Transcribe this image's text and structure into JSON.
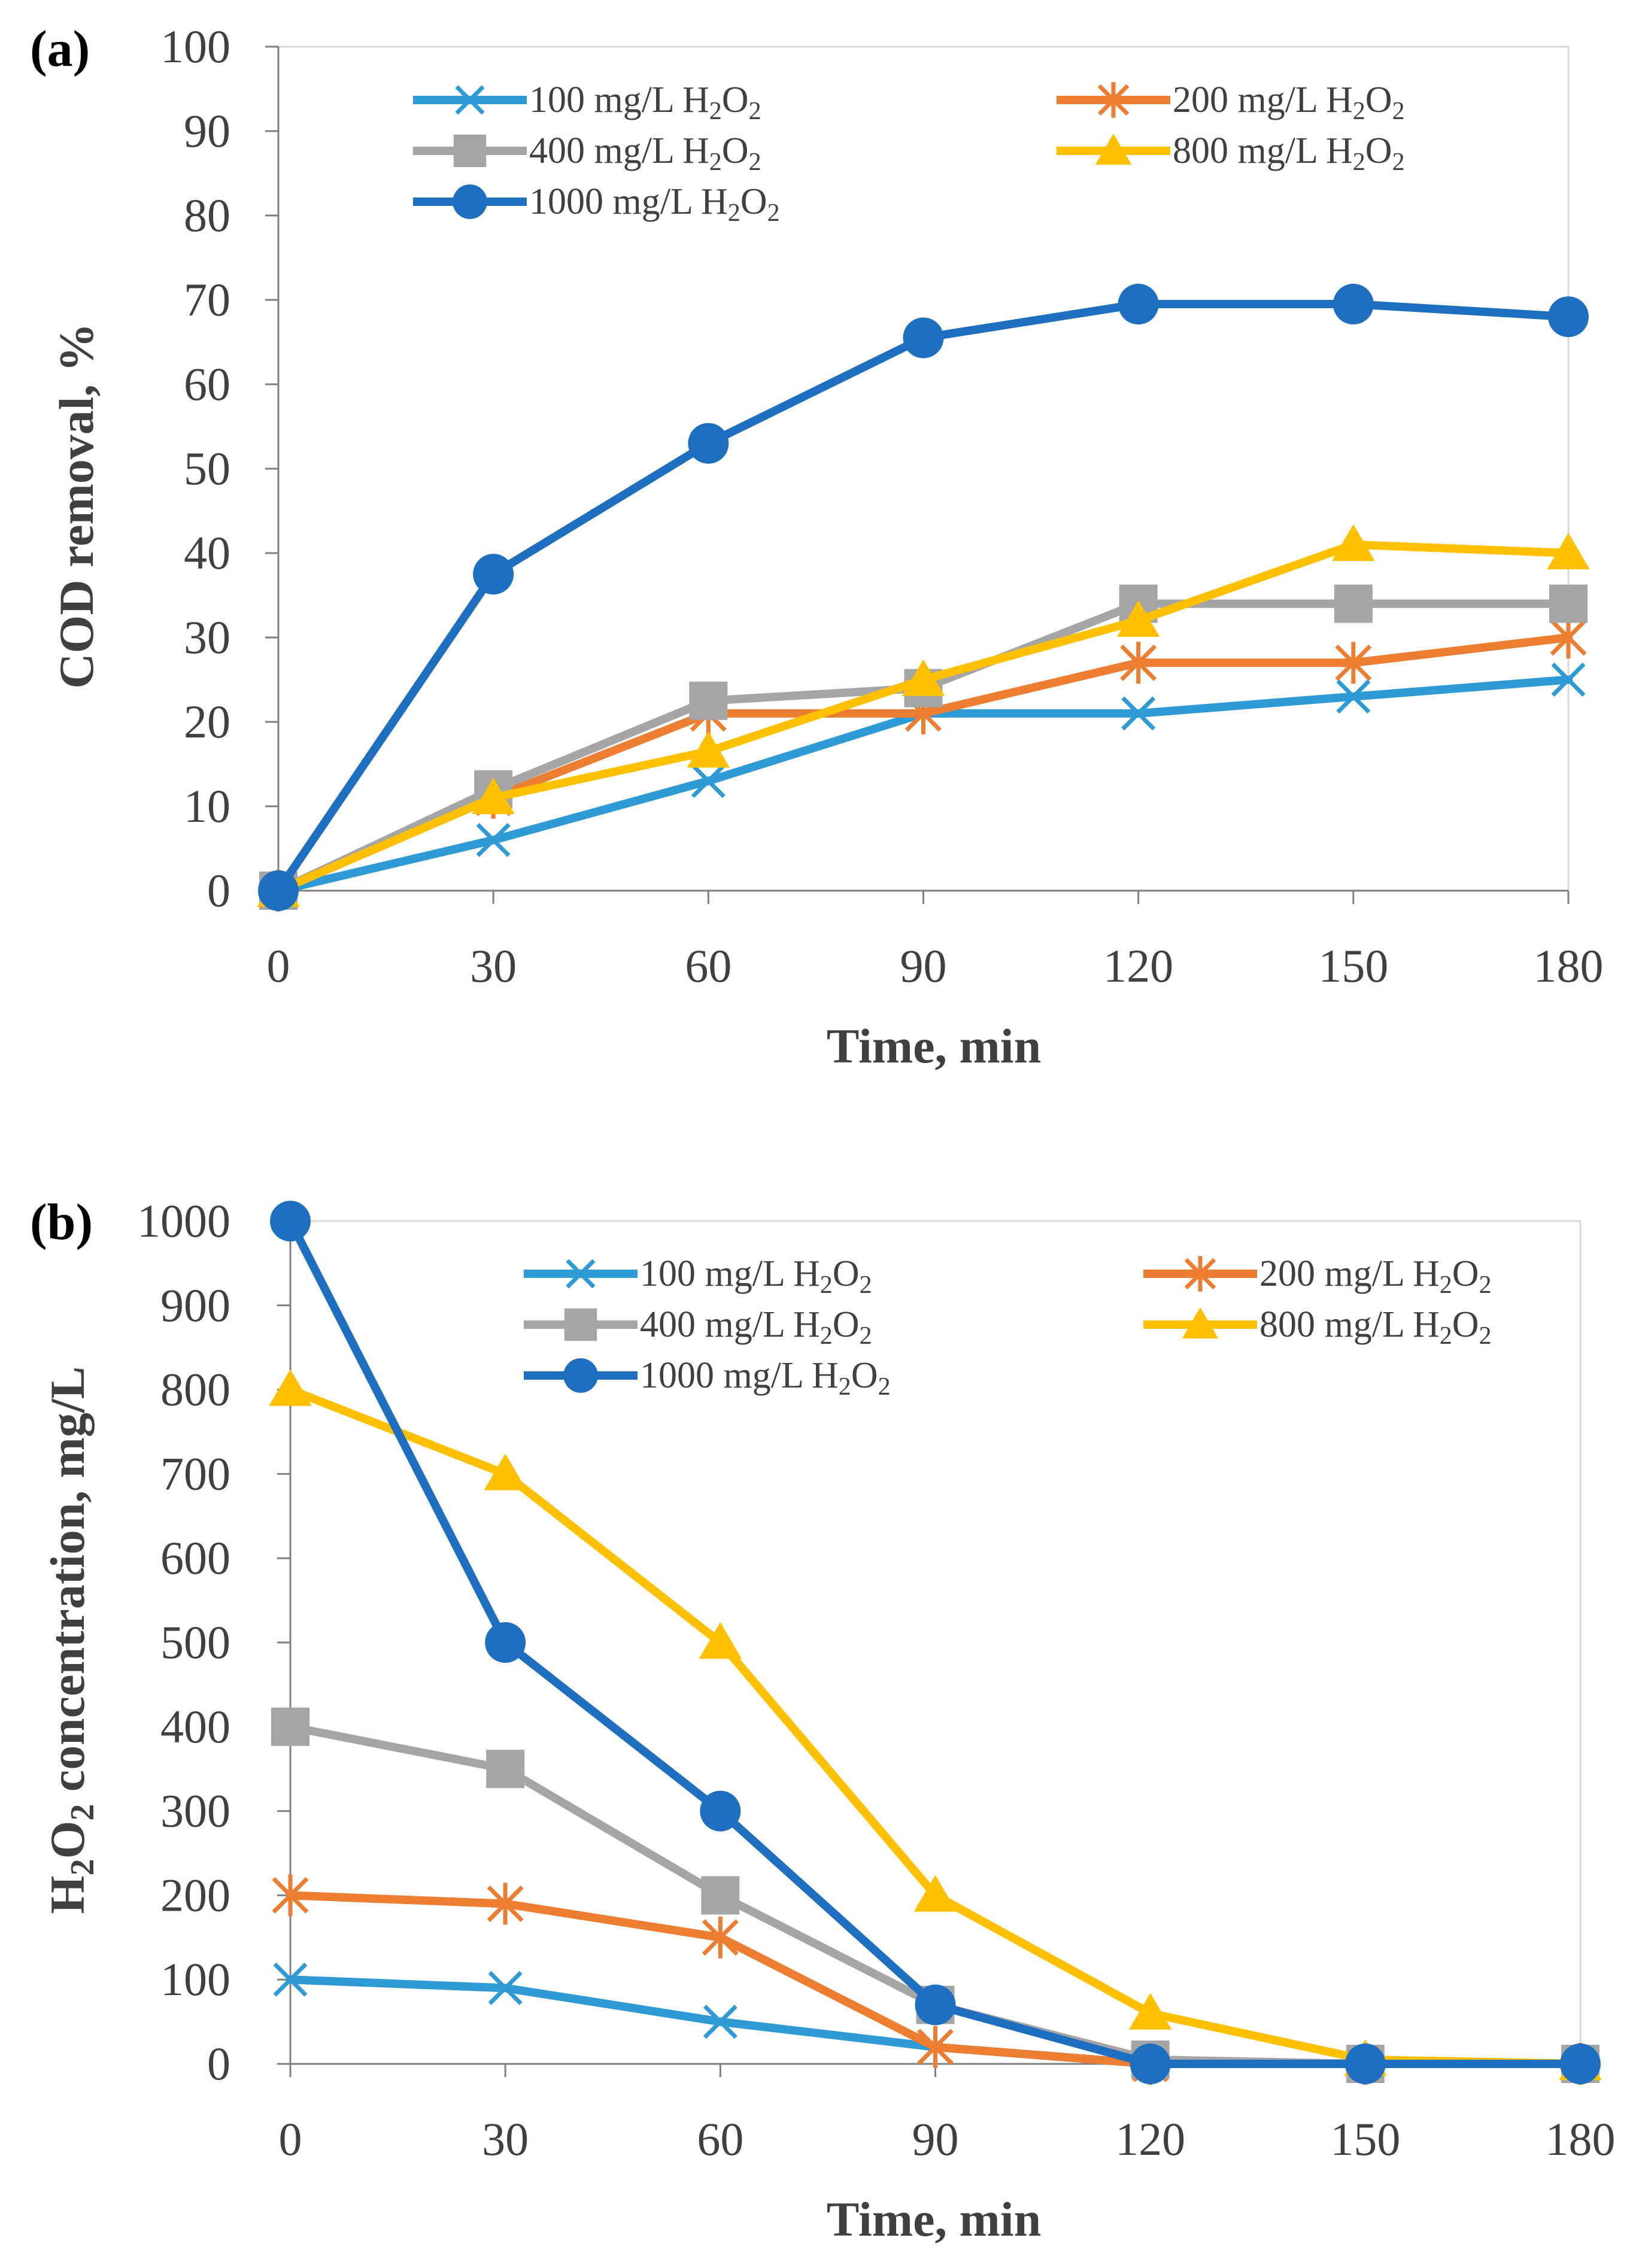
{
  "chart_data": [
    {
      "id": "a",
      "type": "line",
      "panel_label": "(a)",
      "xlabel": "Time, min",
      "ylabel": "COD removal, %",
      "x": [
        0,
        30,
        60,
        90,
        120,
        150,
        180
      ],
      "xlim": [
        0,
        180
      ],
      "ylim": [
        0,
        100
      ],
      "yticks": [
        0,
        10,
        20,
        30,
        40,
        50,
        60,
        70,
        80,
        90,
        100
      ],
      "legend_position": "top",
      "series": [
        {
          "name": "100 mg/L H₂O₂",
          "values": [
            0,
            6,
            13,
            21,
            21,
            23,
            25
          ],
          "color": "#2e9bd6",
          "marker": "x"
        },
        {
          "name": "200 mg/L H₂O₂",
          "values": [
            0,
            11,
            21,
            21,
            27,
            27,
            30
          ],
          "color": "#ed7d31",
          "marker": "asterisk"
        },
        {
          "name": "400 mg/L H₂O₂",
          "values": [
            0,
            12,
            22.5,
            24,
            34,
            34,
            34
          ],
          "color": "#a5a5a5",
          "marker": "square"
        },
        {
          "name": "800 mg/L H₂O₂",
          "values": [
            0,
            11,
            16.5,
            25,
            32,
            41,
            40
          ],
          "color": "#ffc000",
          "marker": "triangle"
        },
        {
          "name": "1000 mg/L H₂O₂",
          "values": [
            0,
            37.5,
            53,
            65.5,
            69.5,
            69.5,
            68
          ],
          "color": "#1f6fc0",
          "marker": "circle"
        }
      ]
    },
    {
      "id": "b",
      "type": "line",
      "panel_label": "(b)",
      "xlabel": "Time, min",
      "ylabel": "H₂O₂ concentration, mg/L",
      "x": [
        0,
        30,
        60,
        90,
        120,
        150,
        180
      ],
      "xlim": [
        0,
        180
      ],
      "ylim": [
        0,
        1000
      ],
      "yticks": [
        0,
        100,
        200,
        300,
        400,
        500,
        600,
        700,
        800,
        900,
        1000
      ],
      "legend_position": "top",
      "series": [
        {
          "name": "100 mg/L H₂O₂",
          "values": [
            100,
            90,
            50,
            20,
            0,
            0,
            0
          ],
          "color": "#2e9bd6",
          "marker": "x"
        },
        {
          "name": "200 mg/L H₂O₂",
          "values": [
            200,
            190,
            150,
            20,
            0,
            0,
            0
          ],
          "color": "#ed7d31",
          "marker": "asterisk"
        },
        {
          "name": "400 mg/L H₂O₂",
          "values": [
            400,
            350,
            200,
            70,
            5,
            0,
            0
          ],
          "color": "#a5a5a5",
          "marker": "square"
        },
        {
          "name": "800 mg/L H₂O₂",
          "values": [
            800,
            700,
            500,
            200,
            60,
            5,
            0
          ],
          "color": "#ffc000",
          "marker": "triangle"
        },
        {
          "name": "1000 mg/L H₂O₂",
          "values": [
            1000,
            500,
            300,
            70,
            0,
            0,
            0
          ],
          "color": "#1f6fc0",
          "marker": "circle"
        }
      ]
    }
  ]
}
